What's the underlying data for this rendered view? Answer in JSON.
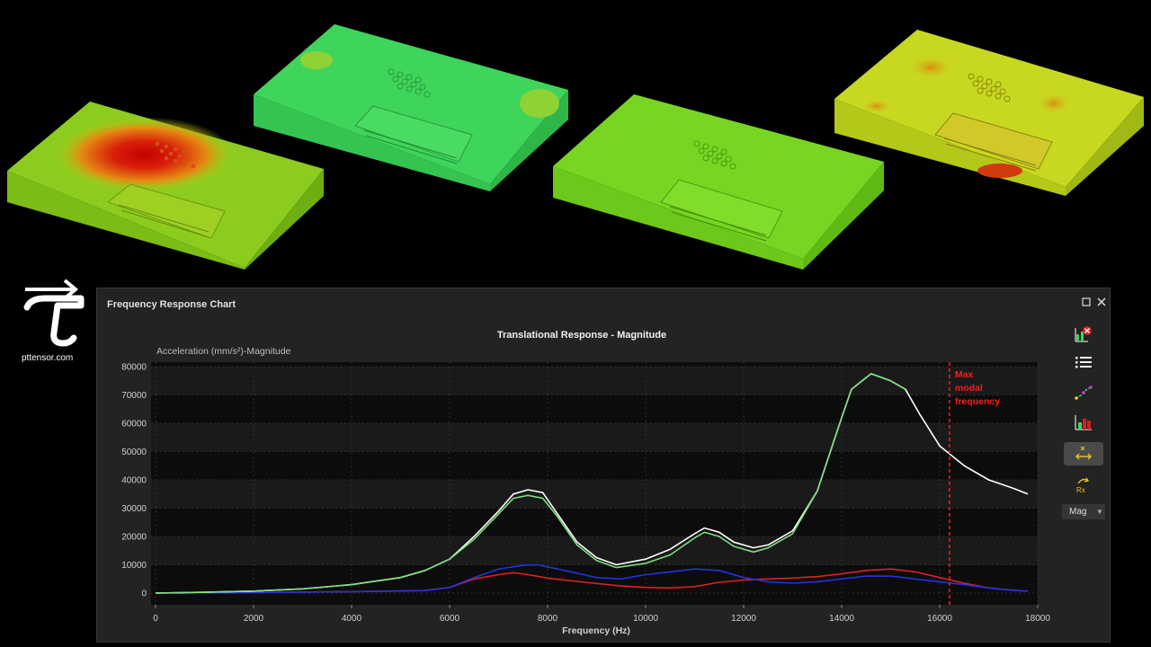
{
  "logo": {
    "text": "pttensor.com"
  },
  "panel": {
    "title": "Frequency Response Chart",
    "mode": "Mag"
  },
  "toolbar": {
    "icons": [
      "chart-delete-icon",
      "list-icon",
      "curve-icon",
      "bar-chart-icon",
      "translational-axis-icon",
      "rotational-rx-icon"
    ],
    "rx_label": "Rx"
  },
  "chart_data": {
    "type": "line",
    "title": "Translational Response - Magnitude",
    "xlabel": "Frequency (Hz)",
    "ylabel": "Acceleration (mm/s²)-Magnitude",
    "xlim": [
      0,
      18000
    ],
    "ylim": [
      0,
      80000
    ],
    "x_ticks": [
      0,
      2000,
      4000,
      6000,
      8000,
      10000,
      12000,
      14000,
      16000,
      18000
    ],
    "y_ticks": [
      0,
      10000,
      20000,
      30000,
      40000,
      50000,
      60000,
      70000,
      80000
    ],
    "grid": true,
    "series": [
      {
        "color": "#ffffff",
        "x": [
          0,
          1000,
          2000,
          3000,
          4000,
          5000,
          5500,
          6000,
          6500,
          7000,
          7300,
          7600,
          7900,
          8200,
          8600,
          9000,
          9400,
          10000,
          10500,
          11000,
          11200,
          11500,
          11800,
          12200,
          12500,
          13000,
          13500,
          14000,
          14200,
          14600,
          15000,
          15300,
          15600,
          16000,
          16500,
          17000,
          17500,
          17800
        ],
        "y": [
          0,
          300,
          700,
          1500,
          3000,
          5500,
          8000,
          12000,
          20000,
          29000,
          35000,
          36500,
          35500,
          28000,
          18000,
          12500,
          10000,
          12000,
          15500,
          21000,
          23000,
          21500,
          18000,
          16000,
          17000,
          22000,
          36000,
          62000,
          72000,
          77500,
          75000,
          72000,
          63000,
          52000,
          45000,
          40000,
          37000,
          35000
        ]
      },
      {
        "color": "#7de07d",
        "x": [
          0,
          1000,
          2000,
          3000,
          4000,
          5000,
          5500,
          6000,
          6500,
          7000,
          7300,
          7600,
          7900,
          8200,
          8600,
          9000,
          9400,
          10000,
          10500,
          11000,
          11200,
          11500,
          11800,
          12200,
          12500,
          13000,
          13500,
          14000,
          14200,
          14600,
          15000,
          15300
        ],
        "y": [
          0,
          300,
          700,
          1500,
          3000,
          5500,
          8000,
          12000,
          19000,
          28000,
          33500,
          34500,
          33500,
          27000,
          17000,
          11500,
          9000,
          10500,
          13500,
          19500,
          21500,
          20000,
          16500,
          14500,
          16000,
          21000,
          36000,
          62000,
          72000,
          77500,
          75000,
          72000
        ]
      },
      {
        "color": "#2233dd",
        "x": [
          0,
          2000,
          4000,
          5500,
          6000,
          6500,
          7000,
          7500,
          7800,
          8200,
          8600,
          9000,
          9500,
          10000,
          10500,
          11000,
          11500,
          12000,
          12500,
          13000,
          13500,
          14000,
          14500,
          15000,
          15500,
          16000,
          16500,
          17000,
          17500,
          17800
        ],
        "y": [
          0,
          200,
          500,
          900,
          2000,
          5500,
          8500,
          9800,
          10000,
          8500,
          7000,
          5500,
          5000,
          6500,
          7500,
          8500,
          8000,
          5500,
          4000,
          3500,
          4000,
          5000,
          6000,
          6000,
          5000,
          4000,
          3000,
          1800,
          1000,
          700
        ]
      },
      {
        "color": "#dd2222",
        "x": [
          0,
          2000,
          4000,
          5500,
          6000,
          6500,
          7000,
          7300,
          7600,
          8000,
          8500,
          9000,
          9500,
          10000,
          10500,
          11000,
          11500,
          12000,
          12500,
          13000,
          13500,
          14000,
          14500,
          15000,
          15500,
          16000,
          16500,
          17000,
          17500,
          17800
        ],
        "y": [
          0,
          200,
          500,
          900,
          2000,
          5000,
          6500,
          7200,
          6500,
          5300,
          4300,
          3400,
          2500,
          2000,
          1800,
          2300,
          3800,
          4600,
          5000,
          5300,
          5800,
          6800,
          8000,
          8500,
          7500,
          5500,
          3500,
          1800,
          1000,
          700
        ]
      }
    ],
    "annotations": [
      {
        "x": 16200,
        "text_lines": [
          "Max",
          "modal",
          "frequency"
        ],
        "color": "#ff1a1a",
        "style": "dashed-vertical"
      }
    ]
  }
}
